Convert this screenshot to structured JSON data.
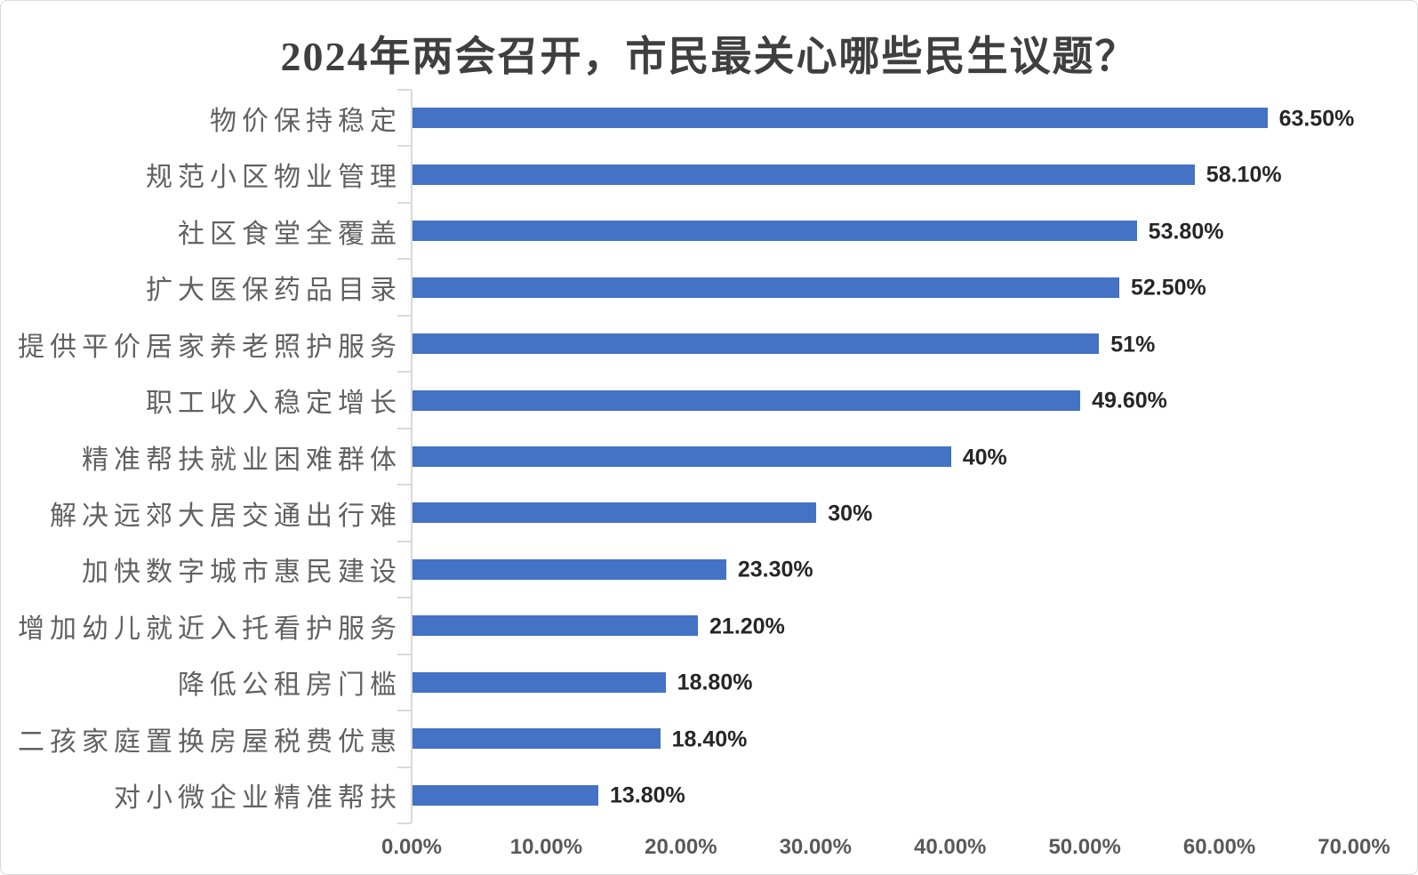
{
  "title": "2024年两会召开，市民最关心哪些民生议题？",
  "chart_data": {
    "type": "bar",
    "orientation": "horizontal",
    "title": "2024年两会召开，市民最关心哪些民生议题？",
    "categories": [
      "物价保持稳定",
      "规范小区物业管理",
      "社区食堂全覆盖",
      "扩大医保药品目录",
      "提供平价居家养老照护服务",
      "职工收入稳定增长",
      "精准帮扶就业困难群体",
      "解决远郊大居交通出行难",
      "加快数字城市惠民建设",
      "增加幼儿就近入托看护服务",
      "降低公租房门槛",
      "二孩家庭置换房屋税费优惠",
      "对小微企业精准帮扶"
    ],
    "values": [
      63.5,
      58.1,
      53.8,
      52.5,
      51,
      49.6,
      40,
      30,
      23.3,
      21.2,
      18.8,
      18.4,
      13.8
    ],
    "value_labels": [
      "63.50%",
      "58.10%",
      "53.80%",
      "52.50%",
      "51%",
      "49.60%",
      "40%",
      "30%",
      "23.30%",
      "21.20%",
      "18.80%",
      "18.40%",
      "13.80%"
    ],
    "xlabel": "",
    "ylabel": "",
    "xlim": [
      0,
      70
    ],
    "x_tick_labels": [
      "0.00%",
      "10.00%",
      "20.00%",
      "30.00%",
      "40.00%",
      "50.00%",
      "60.00%",
      "70.00%"
    ],
    "grid": false,
    "legend": false,
    "bar_color": "#4472C4",
    "axis_color": "#D9D9D9"
  }
}
